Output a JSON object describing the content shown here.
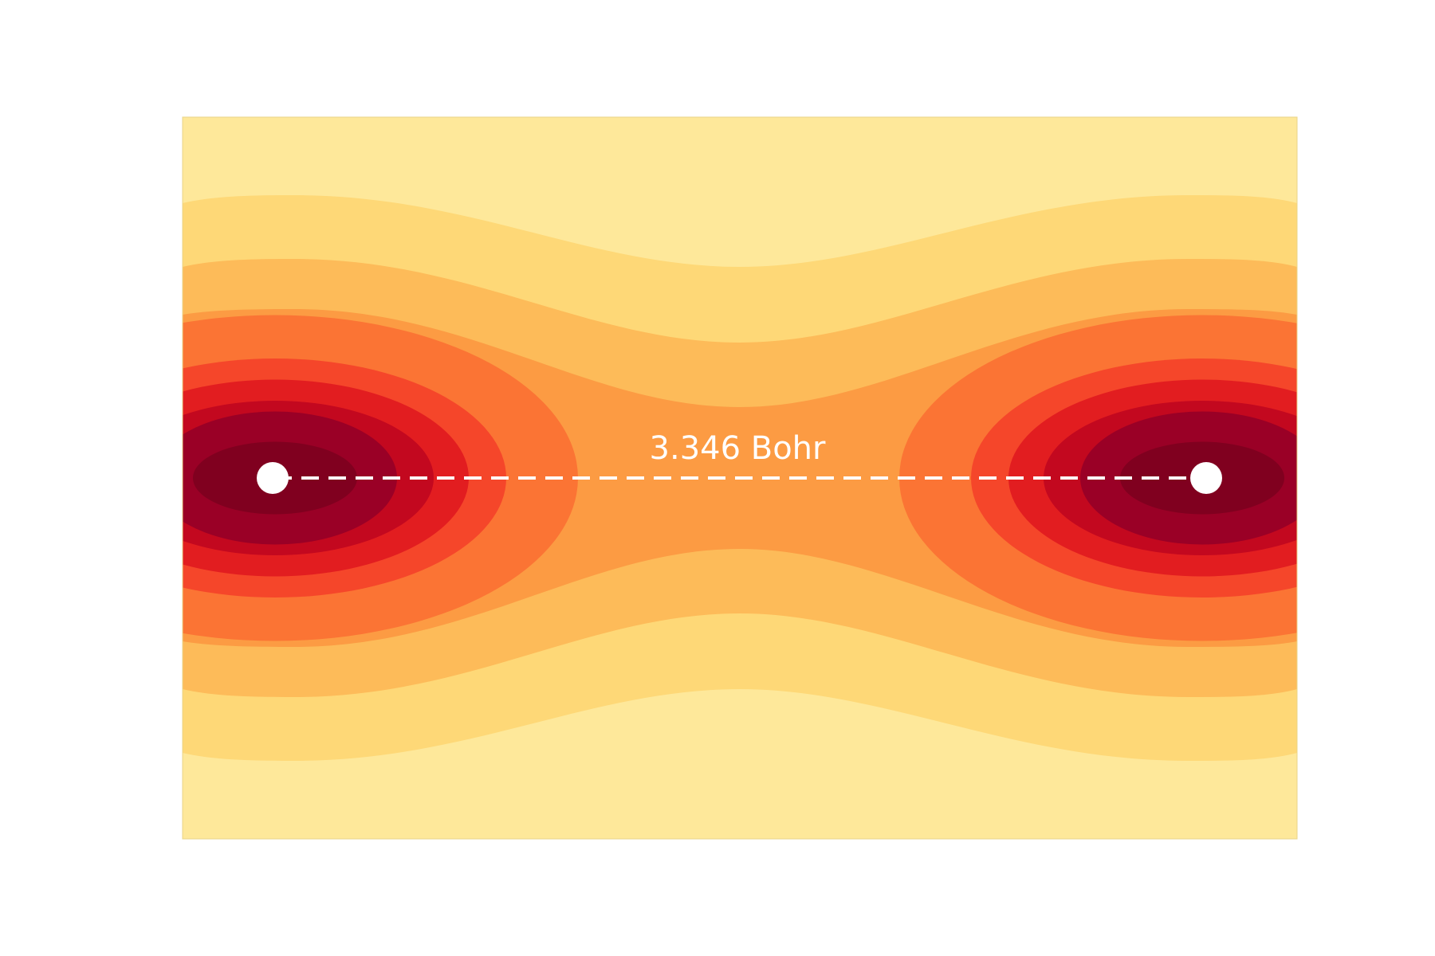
{
  "figure": {
    "bond_label": "3.346 Bohr",
    "contour_levels": [
      "#fee89a",
      "#fed877",
      "#fdbb59",
      "#fc9b43",
      "#fb7434",
      "#f5462a",
      "#e21d20",
      "#c3081f",
      "#9a0026",
      "#80001f"
    ],
    "nucleus_color": "#ffffff",
    "bond_line_color": "#ffffff"
  }
}
